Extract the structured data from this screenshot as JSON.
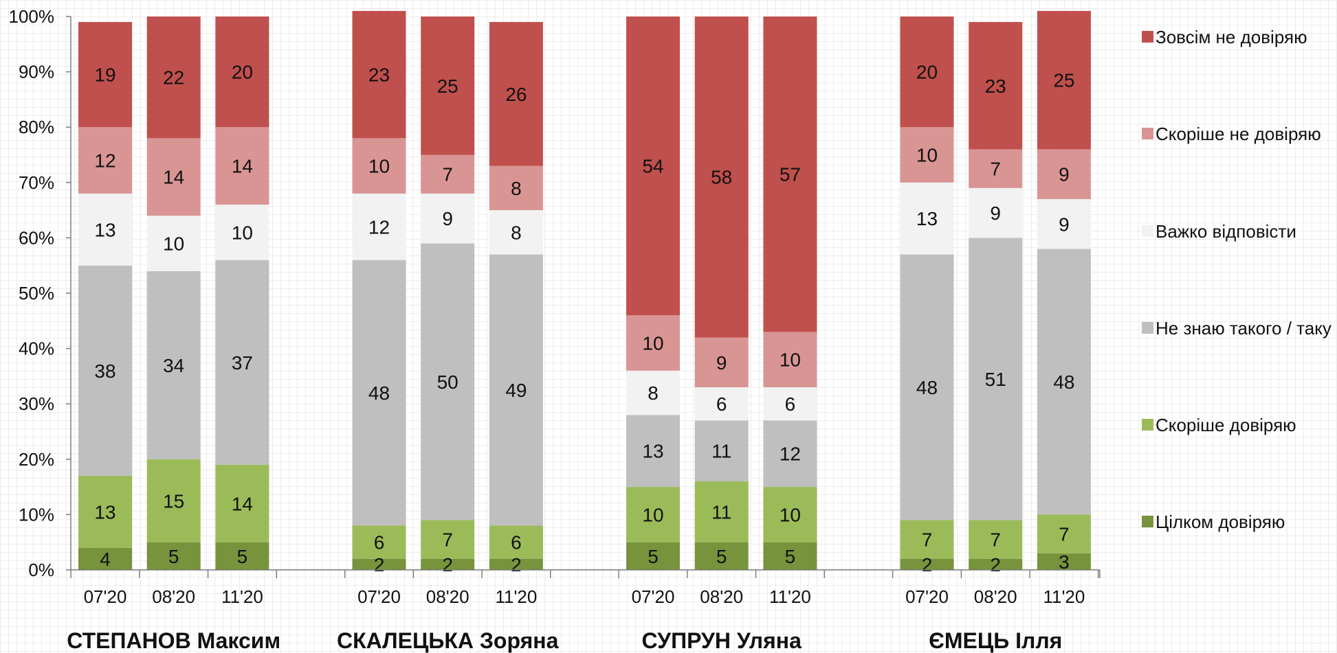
{
  "chart_data": {
    "type": "bar",
    "stacked": true,
    "percent": true,
    "ylim": [
      0,
      100
    ],
    "yticks": [
      "0%",
      "10%",
      "20%",
      "30%",
      "40%",
      "50%",
      "60%",
      "70%",
      "80%",
      "90%",
      "100%"
    ],
    "legend_position": "right",
    "groups": [
      {
        "name": "СТЕПАНОВ Максим",
        "categories": [
          "07'20",
          "08'20",
          "11'20"
        ],
        "values": {
          "Цілком довіряю": [
            4,
            5,
            5
          ],
          "Скоріше довіряю": [
            13,
            15,
            14
          ],
          "Не знаю такого / таку": [
            38,
            34,
            37
          ],
          "Важко відповісти": [
            13,
            10,
            10
          ],
          "Скоріше не довіряю": [
            12,
            14,
            14
          ],
          "Зовсім не довіряю": [
            19,
            22,
            20
          ]
        }
      },
      {
        "name": "СКАЛЕЦЬКА Зоряна",
        "categories": [
          "07'20",
          "08'20",
          "11'20"
        ],
        "values": {
          "Цілком довіряю": [
            2,
            2,
            2
          ],
          "Скоріше довіряю": [
            6,
            7,
            6
          ],
          "Не знаю такого / таку": [
            48,
            50,
            49
          ],
          "Важко відповісти": [
            12,
            9,
            8
          ],
          "Скоріше не довіряю": [
            10,
            7,
            8
          ],
          "Зовсім не довіряю": [
            23,
            25,
            26
          ]
        }
      },
      {
        "name": "СУПРУН Уляна",
        "categories": [
          "07'20",
          "08'20",
          "11'20"
        ],
        "values": {
          "Цілком довіряю": [
            5,
            5,
            5
          ],
          "Скоріше довіряю": [
            10,
            11,
            10
          ],
          "Не знаю такого / таку": [
            13,
            11,
            12
          ],
          "Важко відповісти": [
            8,
            6,
            6
          ],
          "Скоріше не довіряю": [
            10,
            9,
            10
          ],
          "Зовсім не довіряю": [
            54,
            58,
            57
          ]
        }
      },
      {
        "name": "ЄМЕЦЬ Ілля",
        "categories": [
          "07'20",
          "08'20",
          "11'20"
        ],
        "values": {
          "Цілком довіряю": [
            2,
            2,
            3
          ],
          "Скоріше довіряю": [
            7,
            7,
            7
          ],
          "Не знаю такого / таку": [
            48,
            51,
            48
          ],
          "Важко відповісти": [
            13,
            9,
            9
          ],
          "Скоріше не довіряю": [
            10,
            7,
            9
          ],
          "Зовсім не довіряю": [
            20,
            23,
            25
          ]
        }
      }
    ],
    "series": [
      {
        "name": "Цілком довіряю",
        "color": "#77933c"
      },
      {
        "name": "Скоріше довіряю",
        "color": "#9bbb59"
      },
      {
        "name": "Не знаю такого / таку",
        "color": "#bfbfbf"
      },
      {
        "name": "Важко відповісти",
        "color": "#f2f2f2"
      },
      {
        "name": "Скоріше не довіряю",
        "color": "#d99594"
      },
      {
        "name": "Зовсім не довіряю",
        "color": "#c0504d"
      }
    ],
    "legend_order": [
      "Зовсім не довіряю",
      "Скоріше не довіряю",
      "Важко відповісти",
      "Не знаю такого / таку",
      "Скоріше довіряю",
      "Цілком довіряю"
    ]
  }
}
